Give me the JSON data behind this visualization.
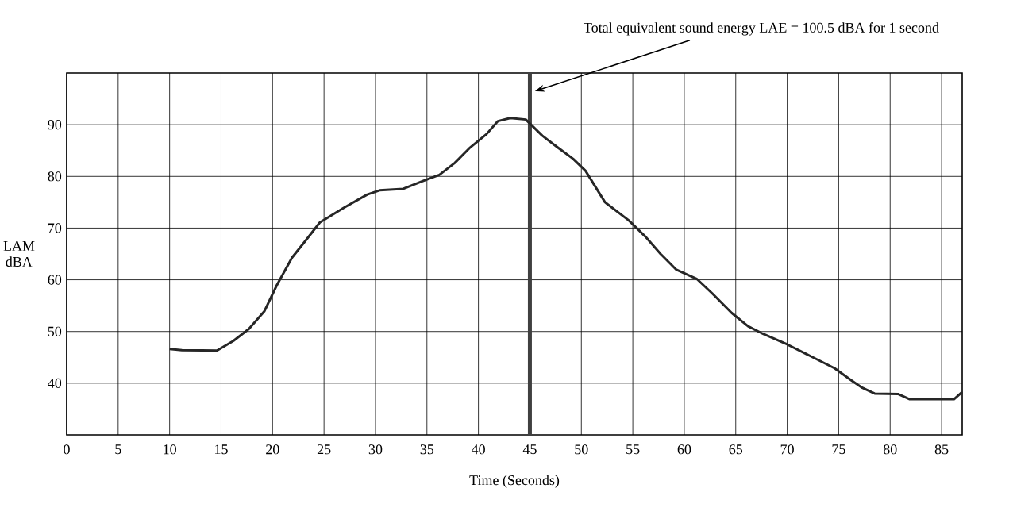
{
  "chart_data": {
    "type": "line",
    "xlabel": "Time (Seconds)",
    "ylabel": "LAM dBA",
    "x": [
      10,
      11.2,
      14.6,
      16.2,
      17.7,
      19.2,
      20.4,
      21.9,
      23.1,
      24.6,
      26.9,
      29.2,
      30.4,
      32.7,
      34.6,
      36.2,
      37.7,
      39.2,
      40.8,
      41.9,
      43.1,
      44.6,
      46.2,
      47.7,
      49.2,
      50.4,
      52.3,
      54.6,
      56.2,
      57.7,
      59.2,
      61.2,
      62.7,
      64.6,
      66.2,
      67.7,
      70,
      72.3,
      74.6,
      76.2,
      77.3,
      78.5,
      80.8,
      81.9,
      84.6,
      86.2,
      87
    ],
    "series": [
      {
        "color": "#262626",
        "values": [
          46.6,
          46.4,
          46.3,
          48.2,
          50.5,
          53.9,
          58.9,
          64.3,
          67.3,
          71.1,
          73.9,
          76.5,
          77.3,
          77.6,
          79.1,
          80.3,
          82.6,
          85.6,
          88.2,
          90.7,
          91.3,
          91.0,
          87.9,
          85.6,
          83.4,
          81.1,
          75.0,
          71.5,
          68.4,
          65.0,
          62.0,
          60.2,
          57.4,
          53.6,
          51.0,
          49.5,
          47.5,
          45.2,
          42.9,
          40.6,
          39.1,
          38.0,
          37.9,
          36.9,
          36.9,
          36.9,
          38.3
        ]
      }
    ],
    "xlim": [
      0,
      87
    ],
    "ylim": [
      30,
      100
    ],
    "xticks": [
      0,
      5,
      10,
      15,
      20,
      25,
      30,
      35,
      40,
      45,
      50,
      55,
      60,
      65,
      70,
      75,
      80,
      85
    ],
    "yticks": [
      40,
      50,
      60,
      70,
      80,
      90
    ],
    "grid": true,
    "marker": "none",
    "line_style": "solid",
    "annotations": [
      {
        "text": "Total equivalent sound energy LAE = 100.5 dBA for 1 second",
        "x": 45.5,
        "y": 96.5
      }
    ],
    "ref_lines": [
      {
        "axis": "x",
        "value": 45,
        "color": "#404040"
      }
    ]
  }
}
